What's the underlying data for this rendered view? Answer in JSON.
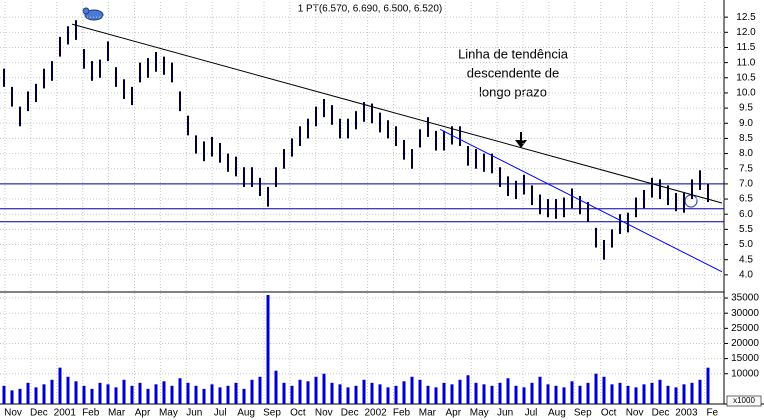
{
  "chart_data": {
    "type": "ohlc",
    "title": "1 PT(6.570, 6.690, 6.500, 6.520)",
    "annotation": [
      "Linha de tendência",
      "descendente de",
      "longo prazo"
    ],
    "month_labels": [
      "Nov",
      "Dec",
      "2001",
      "Feb",
      "Mar",
      "Apr",
      "May",
      "Jun",
      "Jul",
      "Aug",
      "Sep",
      "Oct",
      "Nov",
      "Dec",
      "2002",
      "Feb",
      "Mar",
      "Apr",
      "May",
      "Jun",
      "Jul",
      "Aug",
      "Sep",
      "Oct",
      "Nov",
      "Dec",
      "2003",
      "Fe"
    ],
    "color": "#000033",
    "high": [
      10.8,
      10.2,
      9.55,
      10.05,
      10.3,
      10.8,
      11.05,
      11.85,
      12.2,
      12.4,
      11.45,
      11.05,
      11.1,
      11.7,
      10.85,
      10.45,
      10.2,
      11.0,
      11.15,
      11.35,
      11.2,
      11.0,
      10.05,
      9.25,
      8.6,
      8.4,
      8.55,
      8.35,
      8.0,
      7.9,
      7.55,
      7.55,
      7.2,
      6.9,
      7.55,
      8.15,
      8.5,
      8.9,
      9.15,
      9.55,
      9.8,
      9.6,
      9.15,
      9.15,
      9.4,
      9.7,
      9.65,
      9.35,
      9.1,
      8.9,
      8.45,
      8.15,
      8.8,
      9.2,
      8.75,
      8.75,
      8.9,
      8.9,
      8.25,
      8.15,
      8.0,
      8.0,
      7.55,
      7.25,
      7.1,
      7.3,
      6.95,
      6.65,
      6.5,
      6.5,
      6.55,
      6.85,
      6.6,
      6.4,
      5.55,
      5.15,
      5.5,
      6.0,
      6.05,
      6.55,
      6.8,
      7.2,
      7.15,
      6.95,
      6.7,
      6.7,
      7.15,
      7.45,
      7.0
    ],
    "low": [
      10.2,
      9.55,
      8.9,
      9.4,
      9.7,
      10.15,
      10.4,
      11.2,
      11.6,
      11.75,
      10.8,
      10.4,
      10.5,
      11.05,
      10.2,
      9.8,
      9.6,
      10.35,
      10.5,
      10.7,
      10.6,
      10.35,
      9.4,
      8.6,
      8.0,
      7.75,
      7.9,
      7.7,
      7.4,
      7.25,
      6.9,
      6.9,
      6.6,
      6.25,
      6.9,
      7.5,
      7.9,
      8.25,
      8.5,
      8.9,
      9.2,
      8.95,
      8.5,
      8.5,
      8.8,
      9.05,
      9.0,
      8.7,
      8.5,
      8.25,
      7.8,
      7.5,
      8.2,
      8.55,
      8.1,
      8.1,
      8.3,
      8.25,
      7.6,
      7.5,
      7.4,
      7.35,
      6.9,
      6.6,
      6.5,
      6.65,
      6.3,
      6.0,
      5.9,
      5.85,
      5.9,
      6.2,
      6.0,
      5.75,
      4.9,
      4.5,
      4.9,
      5.35,
      5.4,
      5.9,
      6.2,
      6.55,
      6.5,
      6.3,
      6.1,
      6.05,
      6.5,
      6.8,
      6.4
    ],
    "volume": [
      6000,
      4500,
      5000,
      7000,
      5500,
      6500,
      8000,
      12000,
      9000,
      7500,
      6000,
      5000,
      7000,
      6500,
      5500,
      8000,
      6000,
      7000,
      5000,
      6500,
      7500,
      6000,
      8500,
      7000,
      6000,
      5000,
      6500,
      5500,
      6000,
      7000,
      5000,
      8000,
      9000,
      36000,
      11000,
      7000,
      6000,
      8000,
      7500,
      9000,
      10000,
      7000,
      6500,
      5500,
      6000,
      8000,
      7000,
      6500,
      5500,
      6000,
      7500,
      9000,
      8000,
      6000,
      5500,
      7000,
      6500,
      8000,
      9500,
      7000,
      6500,
      6000,
      7000,
      8500,
      6000,
      5500,
      7000,
      9000,
      6500,
      6000,
      5500,
      7500,
      6000,
      7000,
      10000,
      9000,
      6500,
      7000,
      6000,
      5500,
      6500,
      7000,
      8000,
      6000,
      5500,
      6500,
      7000,
      8000,
      12000
    ],
    "volume_color": "#0000cc",
    "volume_unit": "x1000",
    "hlines": [
      7.0,
      6.18,
      5.75
    ],
    "hline_color": "#0000aa",
    "trendlines": [
      {
        "x": [
          8.5,
          89.75
        ],
        "values": [
          12.27,
          6.37
        ],
        "color": "#000000"
      },
      {
        "x": [
          54.5,
          89.75
        ],
        "values": [
          8.8,
          4.1
        ],
        "color": "#0000ff"
      }
    ],
    "ylim": [
      3.5,
      13.0
    ],
    "yticks": [
      {
        "value": 4,
        "label": "4.0"
      },
      4.5,
      {
        "value": 5,
        "label": "5.0"
      },
      5.5,
      {
        "value": 6,
        "label": "6.0"
      },
      6.5,
      {
        "value": 7,
        "label": "7.0"
      },
      7.5,
      {
        "value": 8,
        "label": "8.0"
      },
      8.5,
      {
        "value": 9,
        "label": "9.0"
      },
      9.5,
      {
        "value": 10,
        "label": "10.0"
      },
      10.5,
      {
        "value": 11,
        "label": "11.0"
      },
      11.5,
      {
        "value": 12,
        "label": "12.0"
      },
      12.5
    ],
    "y2lim": [
      0,
      37000
    ],
    "y2ticks": [
      10000,
      15000,
      20000,
      25000,
      30000,
      35000
    ],
    "grid": true
  }
}
